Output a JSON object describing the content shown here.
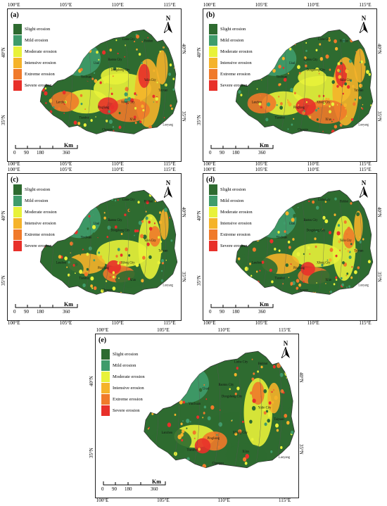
{
  "panels": [
    {
      "label": "(a)"
    },
    {
      "label": "(b)"
    },
    {
      "label": "(c)"
    },
    {
      "label": "(d)"
    },
    {
      "label": "(e)"
    }
  ],
  "legend": [
    {
      "label": "Slight erosion",
      "color": "#2e6b30"
    },
    {
      "label": "Mild erosion",
      "color": "#3f9c6b"
    },
    {
      "label": "Moderate erosion",
      "color": "#e8f23a"
    },
    {
      "label": "Intensive erosion",
      "color": "#f5b32a"
    },
    {
      "label": "Extreme erosion",
      "color": "#f07a2a"
    },
    {
      "label": "Severe erosion",
      "color": "#e8302a"
    }
  ],
  "coords": {
    "lon": [
      "100°E",
      "105°E",
      "110°E",
      "115°E"
    ],
    "lat": [
      "40°N",
      "35°N"
    ]
  },
  "north": "N",
  "scale": {
    "ticks": [
      "0",
      "90",
      "180",
      "360"
    ],
    "unit": "Km"
  },
  "places": [
    "Linhe City",
    "Baotou City",
    "Hohhot",
    "Urad",
    "Dongsheng City",
    "Yinchuan",
    "Yulin City",
    "Xilong City",
    "Taiyuan",
    "Lanzhou",
    "Tianshui",
    "Xi'an",
    "Luoyang",
    "Chenggu",
    "Pingliang"
  ]
}
